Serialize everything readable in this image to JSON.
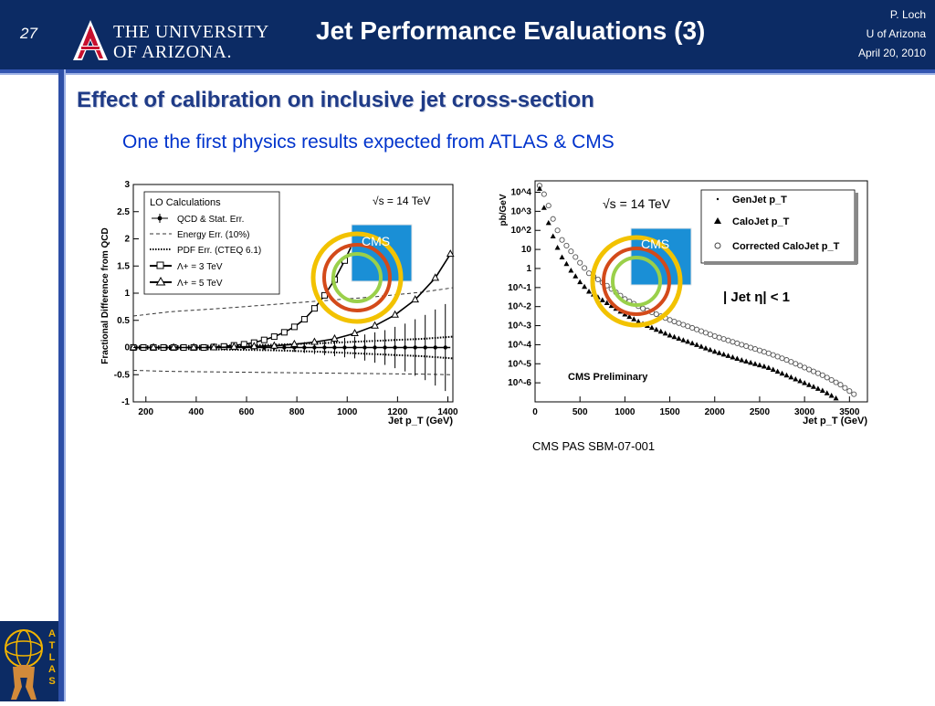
{
  "header": {
    "slide_number": "27",
    "university_line1": "THE UNIVERSITY",
    "university_line2": "OF ARIZONA.",
    "title": "Jet Performance Evaluations (3)",
    "author": "P. Loch",
    "affiliation": "U of Arizona",
    "date": "April 20, 2010"
  },
  "content": {
    "heading": "Effect of calibration on inclusive jet cross-section",
    "subheading": "One the first physics results expected from ATLAS & CMS",
    "caption": "CMS PAS SBM-07-001"
  },
  "footer": {
    "logo_text": "ATLAS"
  },
  "colors": {
    "header_bg": "#0c2b64",
    "heading": "#1f3b87",
    "subheading": "#0033cc"
  },
  "chart_data": [
    {
      "type": "line",
      "ylabel": "Fractional Difference from QCD",
      "xlabel": "Jet p_T (GeV)",
      "xlim": [
        150,
        1420
      ],
      "ylim": [
        -1,
        3
      ],
      "xticks": [
        "200",
        "400",
        "600",
        "800",
        "1000",
        "1200",
        "1400"
      ],
      "yticks": [
        "-1",
        "-0.5",
        "0",
        "0.5",
        "1",
        "1.5",
        "2",
        "2.5",
        "3"
      ],
      "energy_label": "√s = 14 TeV",
      "legend_title": "LO Calculations",
      "legend_position": "top-left",
      "legend": [
        "QCD & Stat. Err.",
        "Energy Err. (10%)",
        "PDF Err. (CTEQ 6.1)",
        "Λ+ = 3 TeV",
        "Λ+ = 5 TeV"
      ],
      "series": [
        {
          "name": "QCD & Stat. Err.",
          "x": [
            150,
            190,
            230,
            270,
            310,
            350,
            390,
            430,
            470,
            510,
            550,
            590,
            630,
            670,
            710,
            750,
            790,
            830,
            870,
            910,
            950,
            990,
            1030,
            1070,
            1110,
            1150,
            1190,
            1230,
            1270,
            1310,
            1350,
            1390
          ],
          "y": [
            0,
            0,
            0,
            0,
            0,
            0,
            0,
            0,
            0,
            0,
            0,
            0,
            0,
            0,
            0,
            0,
            0,
            0,
            0,
            0,
            0,
            0,
            0,
            0,
            0,
            0,
            0,
            0,
            0,
            0,
            0,
            0
          ],
          "err": [
            0,
            0,
            0,
            0,
            0,
            0,
            0,
            0,
            0,
            0.02,
            0.02,
            0.03,
            0.04,
            0.05,
            0.06,
            0.07,
            0.08,
            0.1,
            0.12,
            0.14,
            0.16,
            0.18,
            0.2,
            0.24,
            0.28,
            0.32,
            0.38,
            0.44,
            0.52,
            0.6,
            0.7,
            0.8
          ]
        },
        {
          "name": "Energy Err. (10%)",
          "x": [
            150,
            300,
            500,
            700,
            900,
            1100,
            1300,
            1420
          ],
          "upper": [
            0.58,
            0.66,
            0.72,
            0.79,
            0.86,
            0.93,
            1.02,
            1.1
          ],
          "lower": [
            -0.42,
            -0.44,
            -0.45,
            -0.46,
            -0.47,
            -0.48,
            -0.49,
            -0.5
          ]
        },
        {
          "name": "PDF Err. (CTEQ 6.1)",
          "x": [
            150,
            400,
            700,
            900,
            1100,
            1300,
            1420
          ],
          "upper": [
            0.02,
            0.03,
            0.05,
            0.08,
            0.12,
            0.16,
            0.2
          ],
          "lower": [
            -0.02,
            -0.03,
            -0.05,
            -0.08,
            -0.12,
            -0.16,
            -0.2
          ]
        },
        {
          "name": "Λ+ = 3 TeV",
          "x": [
            150,
            190,
            230,
            270,
            310,
            350,
            390,
            430,
            470,
            510,
            550,
            590,
            630,
            670,
            710,
            750,
            790,
            830,
            870,
            910,
            950,
            990,
            1030
          ],
          "y": [
            0,
            0,
            0,
            0,
            0,
            0,
            0,
            0,
            0.01,
            0.02,
            0.04,
            0.06,
            0.09,
            0.14,
            0.2,
            0.28,
            0.38,
            0.52,
            0.72,
            0.96,
            1.25,
            1.6,
            2.0
          ]
        },
        {
          "name": "Λ+ = 5 TeV",
          "x": [
            150,
            230,
            310,
            390,
            470,
            550,
            630,
            710,
            790,
            870,
            950,
            1030,
            1110,
            1190,
            1270,
            1350,
            1410
          ],
          "y": [
            0,
            0,
            0,
            0,
            0,
            0.01,
            0.02,
            0.03,
            0.06,
            0.1,
            0.16,
            0.26,
            0.4,
            0.6,
            0.88,
            1.28,
            1.72
          ]
        }
      ]
    },
    {
      "type": "scatter",
      "ylabel": "pb/GeV",
      "xlabel": "Jet p_T (GeV)",
      "xlim": [
        0,
        3700
      ],
      "ylim_log10": [
        -7,
        4.6
      ],
      "xticks": [
        "0",
        "500",
        "1000",
        "1500",
        "2000",
        "2500",
        "3000",
        "3500"
      ],
      "yticks": [
        "10^4",
        "10^3",
        "10^2",
        "10",
        "1",
        "10^-1",
        "10^-2",
        "10^-3",
        "10^-4",
        "10^-5",
        "10^-6"
      ],
      "energy_label": "√s = 14 TeV",
      "annotation_eta": "| Jet η| < 1",
      "annotation_prelim": "CMS Preliminary",
      "legend_position": "top-right",
      "legend": [
        "GenJet p_T",
        "CaloJet p_T",
        "Corrected CaloJet p_T"
      ],
      "series": [
        {
          "name": "CaloJet p_T",
          "x": [
            50,
            100,
            150,
            200,
            250,
            300,
            400,
            500,
            600,
            800,
            1000,
            1200,
            1500,
            1800,
            2000,
            2300,
            2600,
            2800,
            3000,
            3200,
            3350
          ],
          "log10_y": [
            4.2,
            3.2,
            2.4,
            1.7,
            1.1,
            0.6,
            -0.1,
            -0.7,
            -1.2,
            -1.8,
            -2.4,
            -2.9,
            -3.5,
            -4.0,
            -4.35,
            -4.8,
            -5.2,
            -5.6,
            -6.0,
            -6.4,
            -6.8
          ]
        },
        {
          "name": "Corrected CaloJet p_T",
          "x": [
            50,
            100,
            150,
            200,
            250,
            300,
            400,
            500,
            600,
            800,
            1000,
            1200,
            1500,
            1800,
            2000,
            2300,
            2600,
            2800,
            3000,
            3200,
            3400,
            3550
          ],
          "log10_y": [
            4.35,
            3.9,
            3.3,
            2.6,
            2.0,
            1.5,
            0.9,
            0.3,
            -0.25,
            -0.9,
            -1.6,
            -2.1,
            -2.7,
            -3.2,
            -3.55,
            -4.0,
            -4.45,
            -4.8,
            -5.2,
            -5.6,
            -6.1,
            -6.6
          ]
        }
      ]
    }
  ]
}
